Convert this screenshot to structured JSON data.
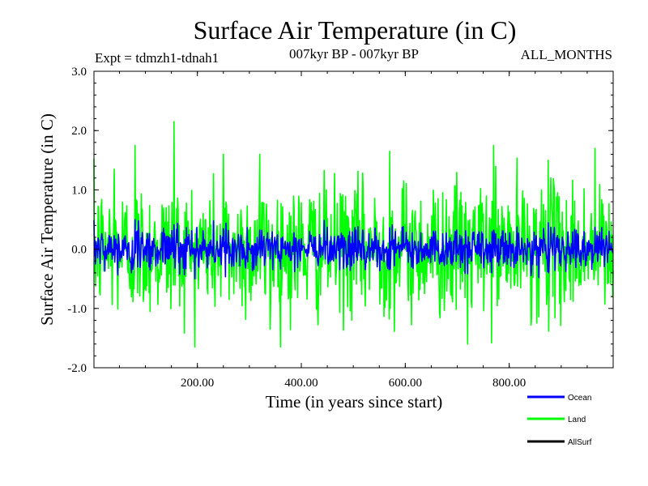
{
  "chart_data": {
    "type": "line",
    "title": "Surface Air Temperature (in C)",
    "subtitle_left": "Expt = tdmzh1-tdnah1",
    "subtitle_center": "007kyr BP - 007kyr BP",
    "subtitle_right": "ALL_MONTHS",
    "xlabel": "Time (in years since start)",
    "ylabel": "Surface Air Temperature (in C)",
    "xlim": [
      1,
      1000
    ],
    "ylim": [
      -2.0,
      3.0
    ],
    "x_ticks": [
      200,
      400,
      600,
      800
    ],
    "x_tick_labels": [
      "200.00",
      "400.00",
      "600.00",
      "800.00"
    ],
    "y_ticks": [
      -2.0,
      -1.0,
      0.0,
      1.0,
      2.0,
      3.0
    ],
    "y_tick_labels": [
      "-2.0",
      "-1.0",
      "0.0",
      "1.0",
      "2.0",
      "3.0"
    ],
    "x": "integer years 1-1000 (one value per year)",
    "series": [
      {
        "name": "Land",
        "color": "#00ff00",
        "mean": 0.0,
        "std": 0.55,
        "min": -1.65,
        "max": 2.15,
        "notable_points": [
          {
            "x": 40,
            "y": 1.35
          },
          {
            "x": 80,
            "y": 1.75
          },
          {
            "x": 155,
            "y": 2.15
          },
          {
            "x": 195,
            "y": -1.65
          },
          {
            "x": 250,
            "y": 1.6
          },
          {
            "x": 320,
            "y": 1.6
          },
          {
            "x": 340,
            "y": -1.35
          },
          {
            "x": 570,
            "y": 1.65
          },
          {
            "x": 720,
            "y": -1.6
          },
          {
            "x": 770,
            "y": 1.75
          },
          {
            "x": 875,
            "y": 1.5
          },
          {
            "x": 965,
            "y": 1.7
          }
        ]
      },
      {
        "name": "Ocean",
        "color": "#0000ff",
        "mean": 0.0,
        "std": 0.17,
        "min": -0.5,
        "max": 0.5
      },
      {
        "name": "AllSurf",
        "color": "#000000",
        "values_visible": false
      }
    ],
    "legend": [
      "Ocean",
      "Land",
      "AllSurf"
    ],
    "legend_location": "bottom-right",
    "grid": false
  }
}
